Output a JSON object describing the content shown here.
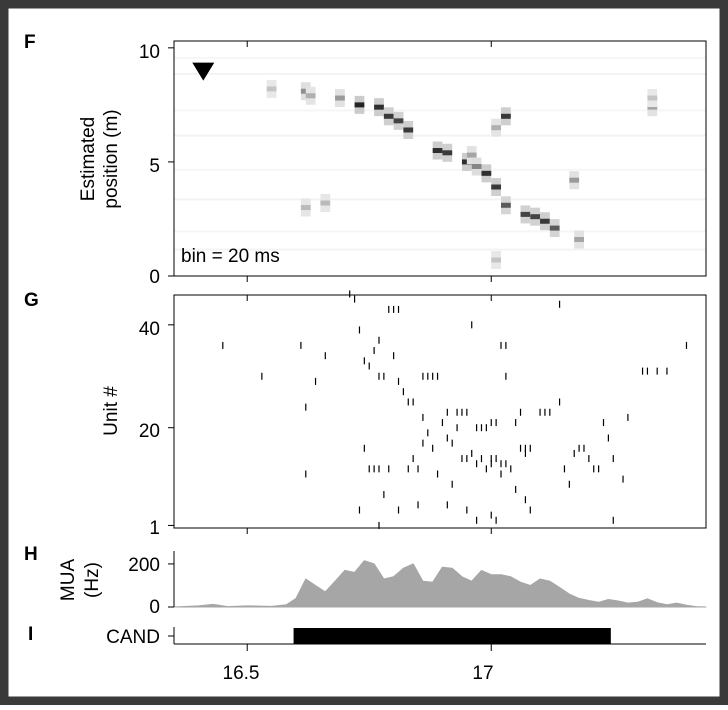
{
  "panel_labels": {
    "f": "F",
    "g": "G",
    "h": "H",
    "i": "I"
  },
  "colors": {
    "frame": "#3a3a3a",
    "mua_fill": "#a6a6a6",
    "spike": "#000000",
    "cand_bar": "#000000"
  },
  "chart_data": [
    {
      "type": "heatmap",
      "panel": "F",
      "ylabel": [
        "Estimated",
        "position (m)"
      ],
      "xlim": [
        16.35,
        17.44
      ],
      "ylim": [
        0,
        10.3
      ],
      "yticks": [
        "0",
        "5",
        "10"
      ],
      "xticks": [
        16.5,
        17
      ],
      "annotation": "bin = 20 ms",
      "marker": "triangle-down",
      "marker_pos": {
        "t": 16.41,
        "y": 9.0
      },
      "decoded_peaks": [
        {
          "t": 16.55,
          "y": 8.2,
          "v": 0.2
        },
        {
          "t": 16.62,
          "y": 8.1,
          "v": 0.45
        },
        {
          "t": 16.63,
          "y": 7.9,
          "v": 0.3
        },
        {
          "t": 16.62,
          "y": 3.0,
          "v": 0.25
        },
        {
          "t": 16.66,
          "y": 3.2,
          "v": 0.25
        },
        {
          "t": 16.69,
          "y": 7.8,
          "v": 0.4
        },
        {
          "t": 16.73,
          "y": 7.5,
          "v": 0.95
        },
        {
          "t": 16.77,
          "y": 7.4,
          "v": 0.9
        },
        {
          "t": 16.79,
          "y": 7.0,
          "v": 0.85
        },
        {
          "t": 16.81,
          "y": 6.8,
          "v": 0.8
        },
        {
          "t": 16.83,
          "y": 6.4,
          "v": 0.85
        },
        {
          "t": 16.89,
          "y": 5.5,
          "v": 0.9
        },
        {
          "t": 16.91,
          "y": 5.4,
          "v": 0.85
        },
        {
          "t": 16.95,
          "y": 5.0,
          "v": 0.9
        },
        {
          "t": 16.96,
          "y": 5.3,
          "v": 0.35
        },
        {
          "t": 16.97,
          "y": 4.8,
          "v": 0.5
        },
        {
          "t": 16.99,
          "y": 4.5,
          "v": 0.9
        },
        {
          "t": 17.01,
          "y": 3.9,
          "v": 0.85
        },
        {
          "t": 17.03,
          "y": 3.1,
          "v": 0.7
        },
        {
          "t": 17.03,
          "y": 7.0,
          "v": 0.85
        },
        {
          "t": 17.01,
          "y": 6.5,
          "v": 0.3
        },
        {
          "t": 17.01,
          "y": 0.7,
          "v": 0.2
        },
        {
          "t": 17.07,
          "y": 2.7,
          "v": 0.8
        },
        {
          "t": 17.09,
          "y": 2.6,
          "v": 0.8
        },
        {
          "t": 17.11,
          "y": 2.4,
          "v": 0.85
        },
        {
          "t": 17.13,
          "y": 2.1,
          "v": 0.7
        },
        {
          "t": 17.17,
          "y": 4.2,
          "v": 0.4
        },
        {
          "t": 17.18,
          "y": 1.6,
          "v": 0.35
        },
        {
          "t": 17.33,
          "y": 7.4,
          "v": 0.35
        },
        {
          "t": 17.33,
          "y": 7.8,
          "v": 0.2
        }
      ]
    },
    {
      "type": "scatter",
      "panel": "G",
      "ylabel": "Unit #",
      "xlim": [
        16.35,
        17.44
      ],
      "ylim": [
        0.5,
        45.8
      ],
      "yticks": [
        "1",
        "20",
        "40"
      ],
      "xticks": [
        16.5,
        17
      ],
      "spikes": [
        [
          16.45,
          36
        ],
        [
          16.53,
          30
        ],
        [
          16.61,
          36
        ],
        [
          16.66,
          34
        ],
        [
          16.62,
          11
        ],
        [
          16.64,
          29
        ],
        [
          16.62,
          24
        ],
        [
          16.71,
          46
        ],
        [
          16.72,
          45
        ],
        [
          16.73,
          39
        ],
        [
          16.74,
          33
        ],
        [
          16.75,
          32
        ],
        [
          16.76,
          35
        ],
        [
          16.77,
          37
        ],
        [
          16.77,
          30
        ],
        [
          16.78,
          30
        ],
        [
          16.79,
          43
        ],
        [
          16.8,
          43
        ],
        [
          16.81,
          43
        ],
        [
          16.8,
          34
        ],
        [
          16.81,
          29
        ],
        [
          16.82,
          27
        ],
        [
          16.83,
          25
        ],
        [
          16.84,
          25
        ],
        [
          16.84,
          14
        ],
        [
          16.74,
          16
        ],
        [
          16.75,
          12
        ],
        [
          16.76,
          12
        ],
        [
          16.77,
          12
        ],
        [
          16.79,
          12
        ],
        [
          16.78,
          7
        ],
        [
          16.73,
          4
        ],
        [
          16.77,
          1
        ],
        [
          16.86,
          30
        ],
        [
          16.87,
          30
        ],
        [
          16.88,
          30
        ],
        [
          16.89,
          30
        ],
        [
          16.9,
          21
        ],
        [
          16.91,
          23
        ],
        [
          16.91,
          18
        ],
        [
          16.92,
          17
        ],
        [
          16.92,
          9
        ],
        [
          16.93,
          23
        ],
        [
          16.94,
          23
        ],
        [
          16.95,
          23
        ],
        [
          16.93,
          20
        ],
        [
          16.94,
          14
        ],
        [
          16.96,
          40
        ],
        [
          16.97,
          20
        ],
        [
          16.98,
          20
        ],
        [
          16.99,
          20
        ],
        [
          17.0,
          21
        ],
        [
          17.01,
          21
        ],
        [
          17.0,
          14
        ],
        [
          17.01,
          14
        ],
        [
          17.02,
          13
        ],
        [
          17.03,
          13
        ],
        [
          17.02,
          36
        ],
        [
          17.03,
          36
        ],
        [
          17.03,
          30
        ],
        [
          17.05,
          21
        ],
        [
          17.06,
          23
        ],
        [
          17.06,
          16
        ],
        [
          17.07,
          16
        ],
        [
          17.08,
          16
        ],
        [
          17.05,
          8
        ],
        [
          17.07,
          15
        ],
        [
          17.04,
          12
        ],
        [
          17.02,
          11
        ],
        [
          17.1,
          23
        ],
        [
          17.11,
          23
        ],
        [
          17.12,
          23
        ],
        [
          17.14,
          25
        ],
        [
          17.15,
          12
        ],
        [
          17.16,
          9
        ],
        [
          17.17,
          15
        ],
        [
          17.19,
          16
        ],
        [
          17.18,
          16
        ],
        [
          17.2,
          14
        ],
        [
          17.21,
          12
        ],
        [
          17.22,
          12
        ],
        [
          17.23,
          21
        ],
        [
          17.24,
          18
        ],
        [
          17.25,
          14
        ],
        [
          17.25,
          2
        ],
        [
          17.27,
          10
        ],
        [
          17.28,
          22
        ],
        [
          17.31,
          31
        ],
        [
          17.32,
          31
        ],
        [
          17.34,
          31
        ],
        [
          17.36,
          31
        ],
        [
          17.4,
          36
        ],
        [
          17.14,
          44
        ],
        [
          17.07,
          6
        ],
        [
          17.08,
          4
        ],
        [
          17.0,
          3
        ],
        [
          17.01,
          2
        ],
        [
          16.97,
          2
        ],
        [
          16.95,
          4
        ],
        [
          16.91,
          5
        ],
        [
          16.89,
          11
        ],
        [
          16.88,
          16
        ],
        [
          16.87,
          19
        ],
        [
          16.86,
          22
        ],
        [
          16.86,
          17
        ],
        [
          16.85,
          12
        ],
        [
          16.83,
          12
        ],
        [
          16.85,
          5
        ],
        [
          16.81,
          4
        ],
        [
          16.95,
          14
        ],
        [
          16.96,
          15
        ],
        [
          16.97,
          13
        ],
        [
          16.98,
          14
        ],
        [
          16.99,
          12
        ],
        [
          17.0,
          13
        ]
      ]
    },
    {
      "type": "area",
      "panel": "H",
      "ylabel": [
        "MUA",
        "(Hz)"
      ],
      "xlim": [
        16.35,
        17.44
      ],
      "ylim": [
        0,
        260
      ],
      "yticks": [
        "0",
        "200"
      ],
      "x": [
        16.35,
        16.4,
        16.43,
        16.46,
        16.5,
        16.55,
        16.58,
        16.6,
        16.62,
        16.64,
        16.66,
        16.68,
        16.7,
        16.72,
        16.74,
        16.76,
        16.78,
        16.8,
        16.82,
        16.84,
        16.86,
        16.88,
        16.9,
        16.92,
        16.94,
        16.96,
        16.98,
        17.0,
        17.02,
        17.04,
        17.06,
        17.08,
        17.1,
        17.12,
        17.14,
        17.16,
        17.18,
        17.2,
        17.22,
        17.24,
        17.26,
        17.28,
        17.3,
        17.32,
        17.34,
        17.36,
        17.38,
        17.4,
        17.42,
        17.44
      ],
      "values": [
        0,
        5,
        12,
        2,
        5,
        3,
        10,
        40,
        130,
        100,
        70,
        120,
        170,
        160,
        215,
        200,
        130,
        140,
        180,
        200,
        120,
        115,
        185,
        180,
        140,
        120,
        170,
        150,
        150,
        140,
        115,
        100,
        130,
        120,
        90,
        60,
        40,
        30,
        22,
        35,
        28,
        18,
        22,
        38,
        20,
        10,
        18,
        8,
        2,
        0
      ]
    },
    {
      "type": "bar",
      "panel": "I",
      "ylabel": "CAND",
      "xlim": [
        16.35,
        17.44
      ],
      "xticks": [
        "16.5",
        "17"
      ],
      "intervals": [
        [
          16.595,
          17.245
        ]
      ]
    }
  ]
}
